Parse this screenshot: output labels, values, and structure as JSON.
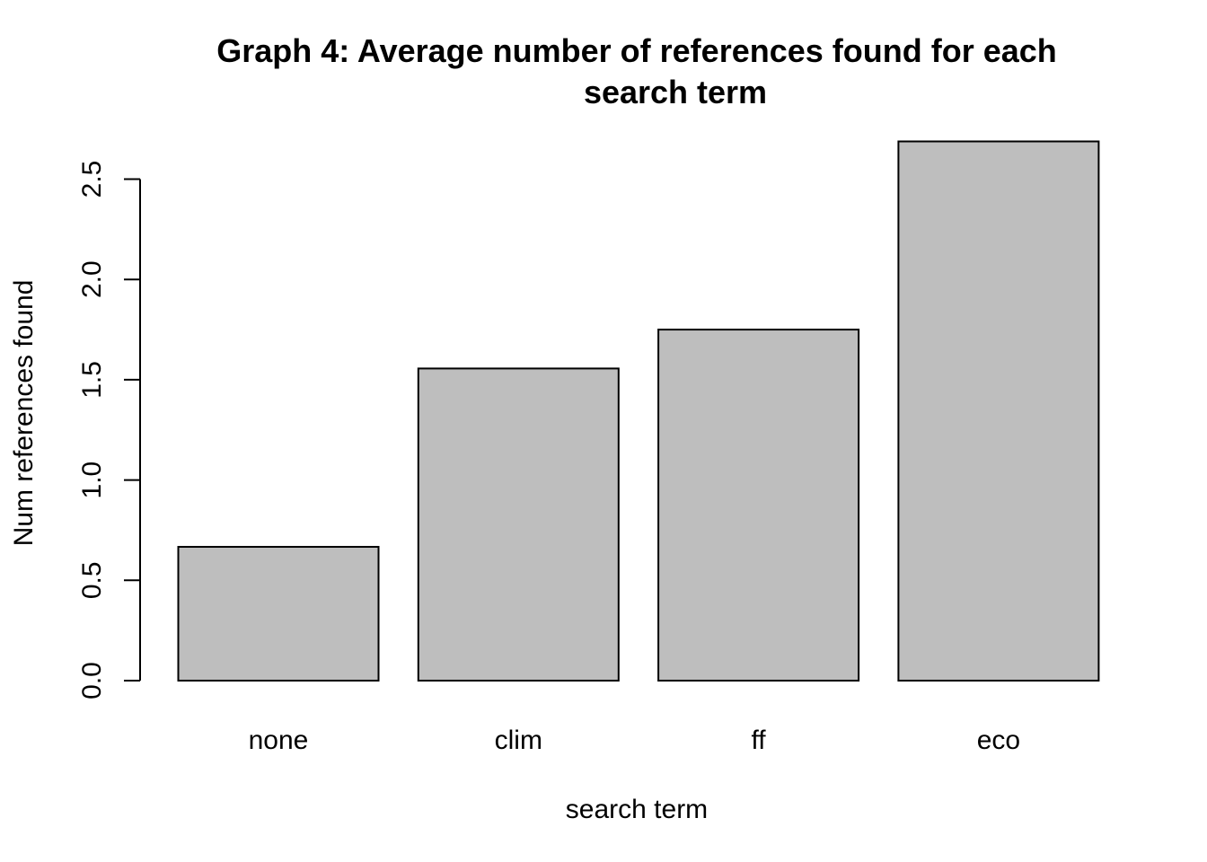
{
  "chart_data": {
    "type": "bar",
    "title_lines": [
      "Graph 4: Average number of references found for each",
      "search term"
    ],
    "xlabel": "search term",
    "ylabel": "Num references found",
    "categories": [
      "none",
      "clim",
      "ff",
      "eco"
    ],
    "values": [
      0.667,
      1.556,
      1.75,
      2.688
    ],
    "ylim": [
      0,
      2.5
    ],
    "yticks": [
      "0.0",
      "0.5",
      "1.0",
      "1.5",
      "2.0",
      "2.5"
    ],
    "bar_color": "#bebebe",
    "border_color": "#000000",
    "grid": false,
    "legend": "none"
  }
}
